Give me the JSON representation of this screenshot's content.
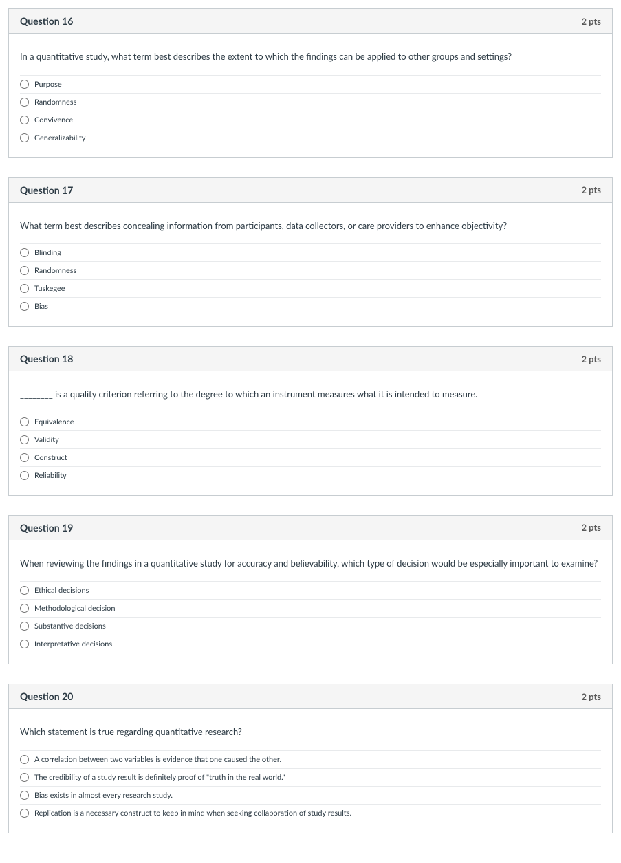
{
  "colors": {
    "text_primary": "#2d3b45",
    "text_secondary": "#595959",
    "border": "#c7cdd1",
    "divider": "#e8eaec",
    "header_bg": "#f5f5f5",
    "body_bg": "#ffffff"
  },
  "typography": {
    "title_fontsize": 14,
    "title_fontweight": 700,
    "points_fontsize": 13,
    "points_fontweight": 700,
    "question_text_fontsize": 13,
    "answer_label_fontsize": 11
  },
  "questions": [
    {
      "title": "Question 16",
      "points": "2 pts",
      "text": "In a quantitative study, what term best describes the extent to which the findings can be applied to other groups and settings?",
      "options": [
        "Purpose",
        "Randomness",
        "Convivence",
        "Generalizability"
      ]
    },
    {
      "title": "Question 17",
      "points": "2 pts",
      "text": "What term best describes concealing information from participants, data collectors, or care providers to enhance objectivity?",
      "options": [
        "Blinding",
        "Randomness",
        "Tuskegee",
        "Bias"
      ]
    },
    {
      "title": "Question 18",
      "points": "2 pts",
      "text": "________ is a quality criterion referring to the degree to which an instrument measures what it is intended to measure.",
      "options": [
        "Equivalence",
        "Validity",
        "Construct",
        "Reliability"
      ]
    },
    {
      "title": "Question 19",
      "points": "2 pts",
      "text": "When reviewing the findings in a quantitative study for accuracy and believability, which type of decision would be especially important to examine?",
      "options": [
        "Ethical decisions",
        "Methodological decision",
        "Substantive decisions",
        "Interpretative decisions"
      ]
    },
    {
      "title": "Question 20",
      "points": "2 pts",
      "text": "Which statement is true regarding quantitative research?",
      "options": [
        "A correlation between two variables is evidence that one caused the other.",
        "The credibility of a study result is definitely proof of \"truth in the real world.\"",
        "Bias exists in almost every research study.",
        "Replication is a necessary construct to keep in mind when seeking collaboration of study results."
      ]
    }
  ]
}
